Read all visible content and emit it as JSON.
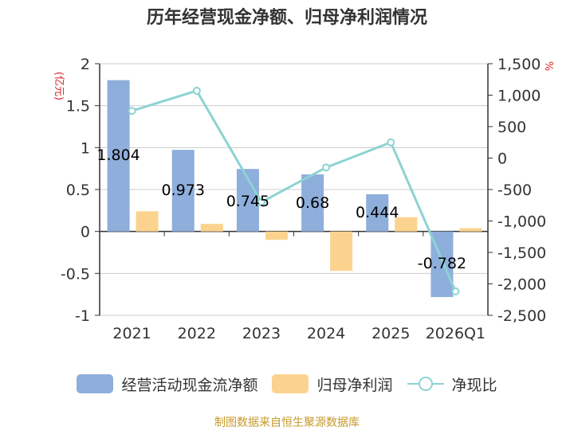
{
  "title": "历年经营现金净额、归母净利润情况",
  "source": "制图数据来自恒生聚源数据库",
  "colors": {
    "bar1": "#8eaedb",
    "bar2": "#fbd38e",
    "line": "#8dd3d3",
    "axis": "#333333",
    "grid": "#cccccc",
    "unit": "#d9262a",
    "source": "#c79a2a"
  },
  "chart_data": {
    "type": "bar",
    "title": "历年经营现金净额、归母净利润情况",
    "categories": [
      "2021",
      "2022",
      "2023",
      "2024",
      "2025",
      "2026Q1"
    ],
    "left_axis": {
      "unit": "(亿元)",
      "ylim": [
        -1,
        2
      ],
      "ticks": [
        "2",
        "1.5",
        "1",
        "0.5",
        "0",
        "-0.5",
        "-1"
      ],
      "tick_values": [
        2,
        1.5,
        1,
        0.5,
        0,
        -0.5,
        -1
      ]
    },
    "right_axis": {
      "unit": "%",
      "ylim": [
        -2500,
        1500
      ],
      "ticks": [
        "1,500",
        "1,000",
        "500",
        "0",
        "-500",
        "-1,000",
        "-1,500",
        "-2,000",
        "-2,500"
      ],
      "tick_values": [
        1500,
        1000,
        500,
        0,
        -500,
        -1000,
        -1500,
        -2000,
        -2500
      ]
    },
    "grid": true,
    "legend_position": "bottom",
    "series": [
      {
        "name": "经营活动现金流净额",
        "type": "bar",
        "axis": "left",
        "values": [
          1.804,
          0.973,
          0.745,
          0.68,
          0.444,
          -0.782
        ],
        "labels": [
          "1.804",
          "0.973",
          "0.745",
          "0.68",
          "0.444",
          "-0.782"
        ]
      },
      {
        "name": "归母净利润",
        "type": "bar",
        "axis": "left",
        "values": [
          0.24,
          0.09,
          -0.1,
          -0.47,
          0.17,
          0.04
        ]
      },
      {
        "name": "净现比",
        "type": "line",
        "axis": "right",
        "values": [
          750,
          1070,
          -700,
          -150,
          250,
          -2120
        ]
      }
    ]
  }
}
